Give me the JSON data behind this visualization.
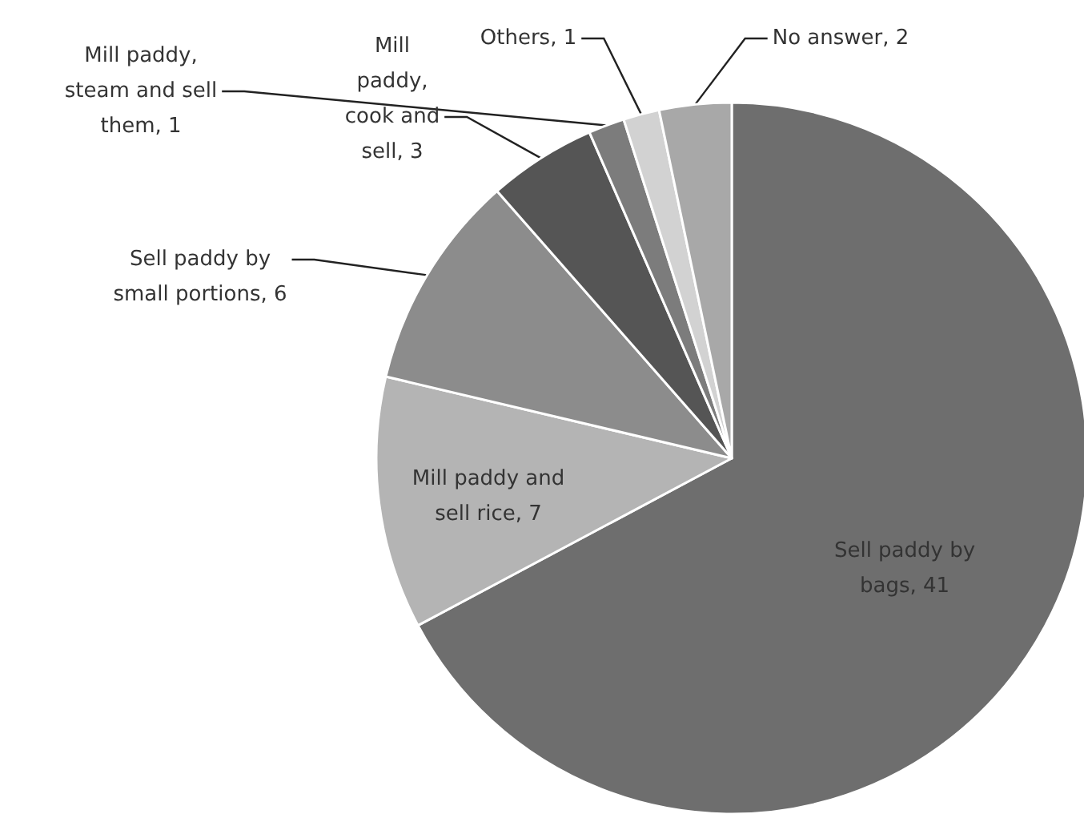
{
  "chart_data": {
    "type": "pie",
    "categories": [
      "Sell paddy by bags",
      "Mill paddy and sell rice",
      "Sell paddy by small portions",
      "Mill paddy, cook and sell",
      "Mill paddy, steam and sell them",
      "Others",
      "No answer"
    ],
    "values": [
      41,
      7,
      6,
      3,
      1,
      1,
      2
    ],
    "value_labels": [
      ", 41",
      ", 7",
      ", 6",
      ", 3",
      ", 1",
      ", 1",
      ", 2"
    ],
    "colors": [
      "#6e6e6e",
      "#b4b4b4",
      "#8c8c8c",
      "#555555",
      "#7c7c7c",
      "#d2d2d2",
      "#a8a8a8"
    ],
    "legend": false
  }
}
